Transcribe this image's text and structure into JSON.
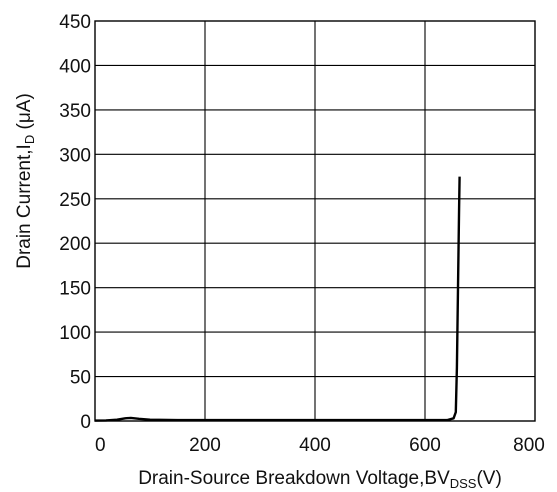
{
  "chart_data": {
    "type": "line",
    "title": "",
    "xlabel": "Drain-Source Breakdown Voltage,BV",
    "xlabel_sub": "DSS",
    "xlabel_unit": "(V)",
    "ylabel": "Drain Current,I",
    "ylabel_sub": "D",
    "ylabel_unit": " (μA)",
    "xlim": [
      0,
      800
    ],
    "ylim": [
      0,
      450
    ],
    "x_ticks": [
      0,
      200,
      400,
      600,
      800
    ],
    "y_ticks": [
      0,
      50,
      100,
      150,
      200,
      250,
      300,
      350,
      400,
      450
    ],
    "grid": true,
    "series": [
      {
        "x": [
          0,
          20,
          40,
          55,
          65,
          80,
          100,
          150,
          200,
          300,
          400,
          500,
          600,
          640,
          652,
          656,
          658,
          660,
          662,
          663
        ],
        "y": [
          0.5,
          0.7,
          1.5,
          3,
          3.5,
          2.5,
          1.5,
          1,
          1,
          1,
          1,
          1,
          1,
          1,
          3,
          10,
          60,
          150,
          240,
          275
        ]
      }
    ],
    "colors": {
      "line": "#000000",
      "grid": "#000000"
    }
  }
}
